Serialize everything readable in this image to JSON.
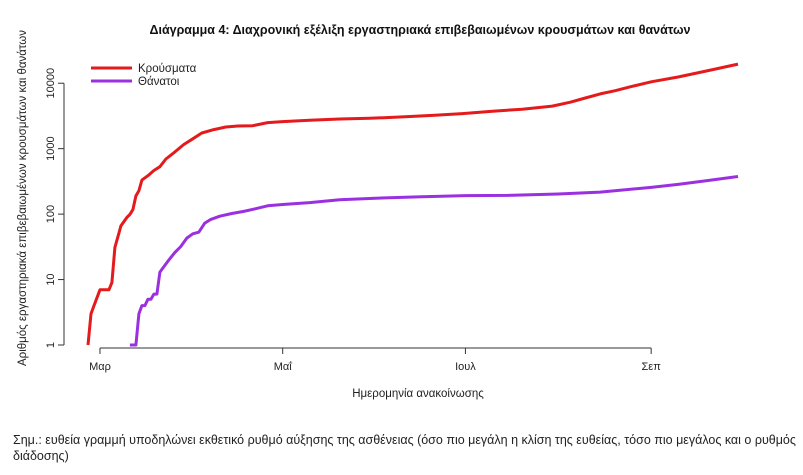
{
  "chart_data": {
    "type": "line",
    "title": "Διάγραμμα 4: Διαχρονική εξέλιξη εργαστηριακά επιβεβαιωμένων κρουσμάτων και θανάτων",
    "xlabel": "Ημερομηνία ανακοίνωσης",
    "ylabel": "Αριθμός εργαστηριακά επιβεβαιωμένων κρουσμάτων και θανάτων",
    "y_scale": "log",
    "ylim": [
      1,
      30000
    ],
    "xlim": [
      "2020-02-22",
      "2020-10-08"
    ],
    "x_ticks": [
      {
        "date": "2020-03-01",
        "label": "Μαρ"
      },
      {
        "date": "2020-05-01",
        "label": "Μαΐ"
      },
      {
        "date": "2020-07-01",
        "label": "Ιουλ"
      },
      {
        "date": "2020-09-01",
        "label": "Σεπ"
      }
    ],
    "y_ticks": [
      {
        "value": 1,
        "label": "1"
      },
      {
        "value": 10,
        "label": "10"
      },
      {
        "value": 100,
        "label": "100"
      },
      {
        "value": 1000,
        "label": "1000"
      },
      {
        "value": 10000,
        "label": "10000"
      }
    ],
    "grid": false,
    "legend_position": "top-left",
    "series": [
      {
        "name": "Κρούσματα",
        "color": "#e41a1c",
        "points": [
          [
            "2020-02-26",
            1
          ],
          [
            "2020-02-27",
            3
          ],
          [
            "2020-02-28",
            4
          ],
          [
            "2020-03-01",
            7
          ],
          [
            "2020-03-04",
            7
          ],
          [
            "2020-03-05",
            9
          ],
          [
            "2020-03-06",
            31
          ],
          [
            "2020-03-07",
            45
          ],
          [
            "2020-03-08",
            66
          ],
          [
            "2020-03-10",
            89
          ],
          [
            "2020-03-11",
            99
          ],
          [
            "2020-03-12",
            117
          ],
          [
            "2020-03-13",
            190
          ],
          [
            "2020-03-14",
            228
          ],
          [
            "2020-03-15",
            331
          ],
          [
            "2020-03-17",
            387
          ],
          [
            "2020-03-19",
            464
          ],
          [
            "2020-03-21",
            530
          ],
          [
            "2020-03-23",
            695
          ],
          [
            "2020-03-26",
            892
          ],
          [
            "2020-03-29",
            1156
          ],
          [
            "2020-04-01",
            1415
          ],
          [
            "2020-04-04",
            1735
          ],
          [
            "2020-04-08",
            1955
          ],
          [
            "2020-04-12",
            2145
          ],
          [
            "2020-04-16",
            2224
          ],
          [
            "2020-04-21",
            2245
          ],
          [
            "2020-04-26",
            2506
          ],
          [
            "2020-05-01",
            2591
          ],
          [
            "2020-05-10",
            2710
          ],
          [
            "2020-05-20",
            2840
          ],
          [
            "2020-05-30",
            2915
          ],
          [
            "2020-06-10",
            3058
          ],
          [
            "2020-06-20",
            3227
          ],
          [
            "2020-06-30",
            3432
          ],
          [
            "2020-07-10",
            3732
          ],
          [
            "2020-07-20",
            4012
          ],
          [
            "2020-07-30",
            4477
          ],
          [
            "2020-08-05",
            5123
          ],
          [
            "2020-08-10",
            5942
          ],
          [
            "2020-08-15",
            6858
          ],
          [
            "2020-08-20",
            7684
          ],
          [
            "2020-08-25",
            8819
          ],
          [
            "2020-09-01",
            10524
          ],
          [
            "2020-09-10",
            12452
          ],
          [
            "2020-09-20",
            15595
          ],
          [
            "2020-09-30",
            19613
          ]
        ]
      },
      {
        "name": "Θάνατοι",
        "color": "#9b30e0",
        "points": [
          [
            "2020-03-11",
            1
          ],
          [
            "2020-03-13",
            1
          ],
          [
            "2020-03-14",
            3
          ],
          [
            "2020-03-15",
            4
          ],
          [
            "2020-03-16",
            4
          ],
          [
            "2020-03-17",
            5
          ],
          [
            "2020-03-18",
            5
          ],
          [
            "2020-03-19",
            6
          ],
          [
            "2020-03-20",
            6
          ],
          [
            "2020-03-21",
            13
          ],
          [
            "2020-03-22",
            15
          ],
          [
            "2020-03-24",
            20
          ],
          [
            "2020-03-26",
            26
          ],
          [
            "2020-03-28",
            32
          ],
          [
            "2020-03-30",
            43
          ],
          [
            "2020-04-01",
            50
          ],
          [
            "2020-04-03",
            53
          ],
          [
            "2020-04-05",
            73
          ],
          [
            "2020-04-07",
            83
          ],
          [
            "2020-04-10",
            93
          ],
          [
            "2020-04-14",
            102
          ],
          [
            "2020-04-18",
            110
          ],
          [
            "2020-04-22",
            121
          ],
          [
            "2020-04-26",
            134
          ],
          [
            "2020-05-01",
            140
          ],
          [
            "2020-05-10",
            150
          ],
          [
            "2020-05-20",
            166
          ],
          [
            "2020-06-01",
            175
          ],
          [
            "2020-06-15",
            183
          ],
          [
            "2020-07-01",
            192
          ],
          [
            "2020-07-15",
            193
          ],
          [
            "2020-08-01",
            203
          ],
          [
            "2020-08-15",
            217
          ],
          [
            "2020-09-01",
            256
          ],
          [
            "2020-09-10",
            284
          ],
          [
            "2020-09-20",
            326
          ],
          [
            "2020-09-30",
            376
          ]
        ]
      }
    ]
  },
  "note": "Σημ.: ευθεία γραμμή υποδηλώνει εκθετικό ρυθμό αύξησης της ασθένειας (όσο πιο μεγάλη η κλίση της ευθείας, τόσο πιο μεγάλος και ο ρυθμός διάδοσης)"
}
